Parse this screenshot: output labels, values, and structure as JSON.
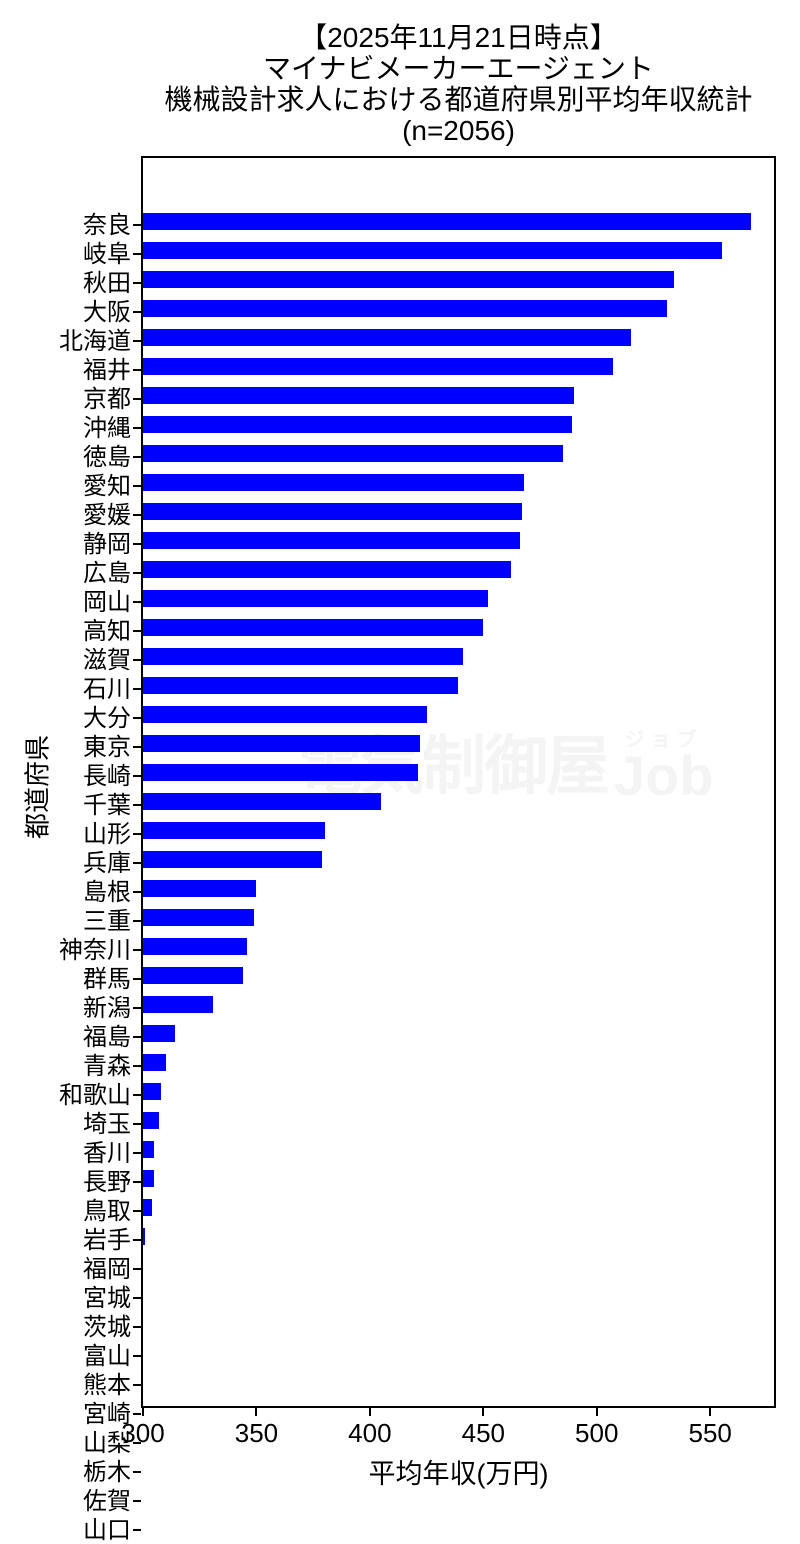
{
  "title": {
    "lines": [
      "【2025年11月21日時点】",
      "マイナビメーカーエージェント",
      "機械設計求人における都道府県別平均年収統計",
      "(n=2056)"
    ]
  },
  "watermark": {
    "kanji": "電気制御屋",
    "katakana": "ジョブ",
    "latin": "Job"
  },
  "chart_data": {
    "type": "bar",
    "orientation": "horizontal",
    "title": "【2025年11月21日時点】 マイナビメーカーエージェント 機械設計求人における都道府県別平均年収統計 (n=2056)",
    "xlabel": "平均年収(万円)",
    "ylabel": "都道府県",
    "xlim": [
      300,
      579
    ],
    "xticks": [
      300,
      350,
      400,
      450,
      500,
      550
    ],
    "grid": false,
    "legend": "none",
    "bar_color": "#0000ff",
    "categories": [
      "奈良",
      "岐阜",
      "秋田",
      "大阪",
      "北海道",
      "福井",
      "京都",
      "沖縄",
      "徳島",
      "愛知",
      "愛媛",
      "静岡",
      "広島",
      "岡山",
      "高知",
      "滋賀",
      "石川",
      "大分",
      "東京",
      "長崎",
      "千葉",
      "山形",
      "兵庫",
      "島根",
      "三重",
      "神奈川",
      "群馬",
      "新潟",
      "福島",
      "青森",
      "和歌山",
      "埼玉",
      "香川",
      "長野",
      "鳥取",
      "岩手",
      "福岡",
      "宮城",
      "茨城",
      "富山",
      "熊本",
      "宮崎",
      "山梨",
      "栃木",
      "佐賀",
      "山口"
    ],
    "values": [
      568,
      555,
      534,
      531,
      515,
      507,
      490,
      489,
      485,
      468,
      467,
      466,
      462,
      452,
      450,
      441,
      439,
      425,
      422,
      421,
      405,
      380,
      379,
      350,
      349,
      346,
      344,
      331,
      314,
      310,
      308,
      307,
      305,
      305,
      304,
      301,
      300,
      300,
      300,
      300,
      300,
      300,
      300,
      300,
      300,
      300
    ]
  }
}
